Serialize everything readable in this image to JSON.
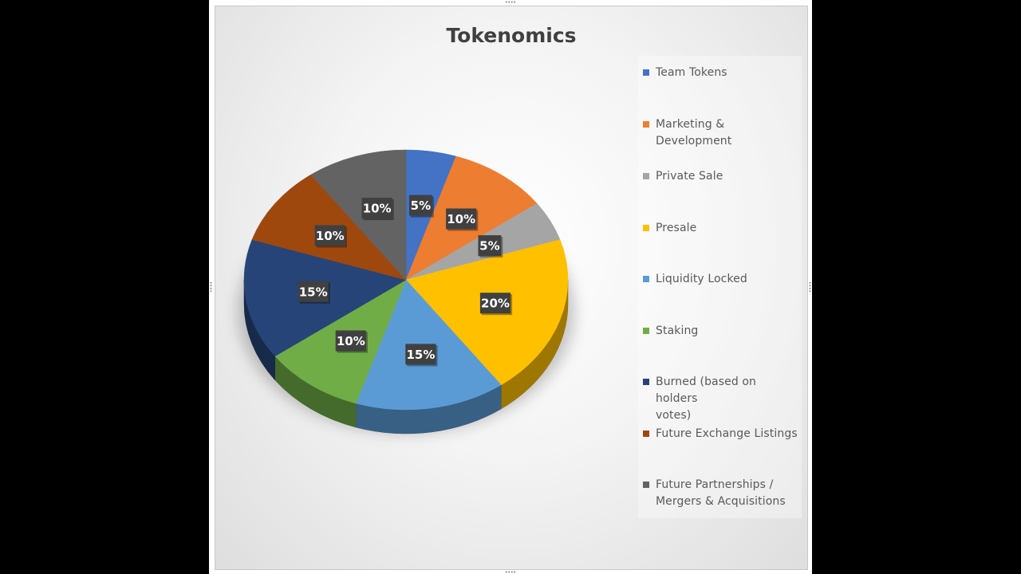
{
  "chart_data": {
    "type": "pie",
    "title": "Tokenomics",
    "style": "3d",
    "legend_position": "right",
    "data_labels": "percent",
    "categories": [
      "Team Tokens",
      "Marketing & Development",
      "Private Sale",
      "Presale",
      "Liquidity Locked",
      "Staking",
      "Burned (based on holders votes)",
      "Future Exchange Listings",
      "Future Partnerships / Mergers & Acquisitions"
    ],
    "values": [
      5,
      10,
      5,
      20,
      15,
      10,
      15,
      10,
      10
    ],
    "labels": [
      "5%",
      "10%",
      "5%",
      "20%",
      "15%",
      "10%",
      "15%",
      "10%",
      "10%"
    ],
    "colors": [
      "#4472C4",
      "#ED7D31",
      "#A5A5A5",
      "#FFC000",
      "#5B9BD5",
      "#70AD47",
      "#264478",
      "#9E480E",
      "#636363"
    ],
    "legend_lines": [
      [
        "Team Tokens"
      ],
      [
        "Marketing &",
        "Development"
      ],
      [
        "Private Sale"
      ],
      [
        "Presale"
      ],
      [
        "Liquidity Locked"
      ],
      [
        "Staking"
      ],
      [
        "Burned (based on holders",
        "votes)"
      ],
      [
        "Future Exchange Listings"
      ],
      [
        "Future Partnerships /",
        "Mergers & Acquisitions"
      ]
    ]
  }
}
